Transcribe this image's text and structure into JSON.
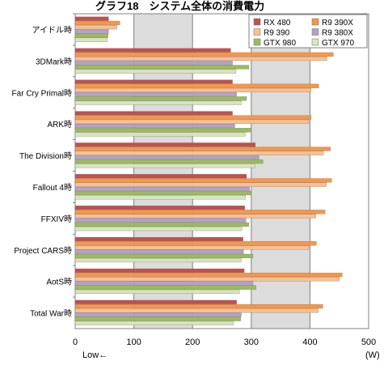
{
  "chart_data": {
    "type": "bar",
    "orientation": "horizontal",
    "title": "グラフ18　システム全体の消費電力",
    "unit_label": "(W)",
    "direction_note": "Low←",
    "xlim": [
      0,
      500
    ],
    "x_ticks": [
      0,
      100,
      200,
      300,
      400,
      500
    ],
    "grid": true,
    "legend_position": "top-right",
    "categories": [
      "アイドル時",
      "3DMark時",
      "Far Cry Primal時",
      "ARK時",
      "The Division時",
      "Fallout 4時",
      "FFXIV時",
      "Project CARS時",
      "AotS時",
      "Total War時"
    ],
    "series": [
      {
        "name": "RX 480",
        "color": "#c0504d",
        "values": [
          57,
          265,
          268,
          268,
          307,
          292,
          289,
          286,
          288,
          275
        ]
      },
      {
        "name": "R9 390X",
        "color": "#f79646",
        "values": [
          76,
          440,
          415,
          402,
          435,
          437,
          426,
          411,
          455,
          422
        ]
      },
      {
        "name": "R9 390",
        "color": "#fabf8f",
        "values": [
          71,
          429,
          402,
          398,
          423,
          428,
          410,
          398,
          450,
          414
        ]
      },
      {
        "name": "R9 380X",
        "color": "#b3a2c7",
        "values": [
          57,
          268,
          275,
          272,
          313,
          297,
          291,
          287,
          303,
          283
        ]
      },
      {
        "name": "GTX 980",
        "color": "#9bbb59",
        "values": [
          56,
          296,
          292,
          300,
          320,
          300,
          296,
          303,
          308,
          282
        ]
      },
      {
        "name": "GTX 970",
        "color": "#d7e4bd",
        "values": [
          55,
          274,
          283,
          290,
          306,
          290,
          284,
          283,
          280,
          270
        ]
      }
    ]
  }
}
